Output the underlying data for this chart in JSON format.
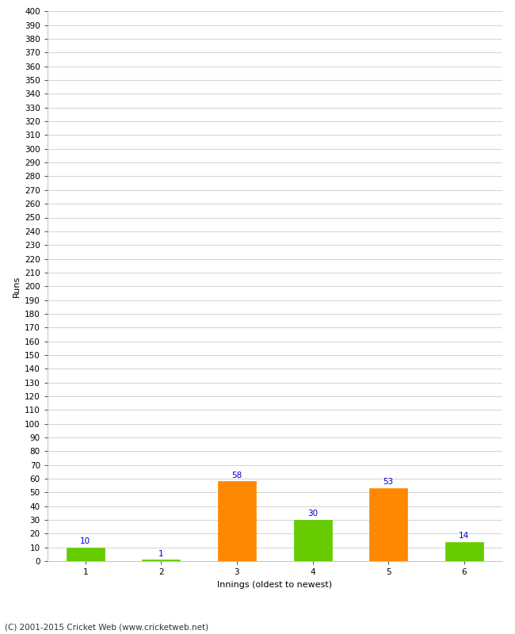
{
  "categories": [
    1,
    2,
    3,
    4,
    5,
    6
  ],
  "values": [
    10,
    1,
    58,
    30,
    53,
    14
  ],
  "bar_colors": [
    "#66cc00",
    "#66cc00",
    "#ff8800",
    "#66cc00",
    "#ff8800",
    "#66cc00"
  ],
  "xlabel": "Innings (oldest to newest)",
  "ylabel": "Runs",
  "ylim": [
    0,
    400
  ],
  "yticks": [
    0,
    10,
    20,
    30,
    40,
    50,
    60,
    70,
    80,
    90,
    100,
    110,
    120,
    130,
    140,
    150,
    160,
    170,
    180,
    190,
    200,
    210,
    220,
    230,
    240,
    250,
    260,
    270,
    280,
    290,
    300,
    310,
    320,
    330,
    340,
    350,
    360,
    370,
    380,
    390,
    400
  ],
  "label_color": "#0000cc",
  "label_fontsize": 7.5,
  "axis_fontsize": 7.5,
  "xlabel_fontsize": 8,
  "ylabel_fontsize": 8,
  "footer_text": "(C) 2001-2015 Cricket Web (www.cricketweb.net)",
  "footer_fontsize": 7.5,
  "background_color": "#ffffff",
  "grid_color": "#cccccc",
  "bar_width": 0.5
}
